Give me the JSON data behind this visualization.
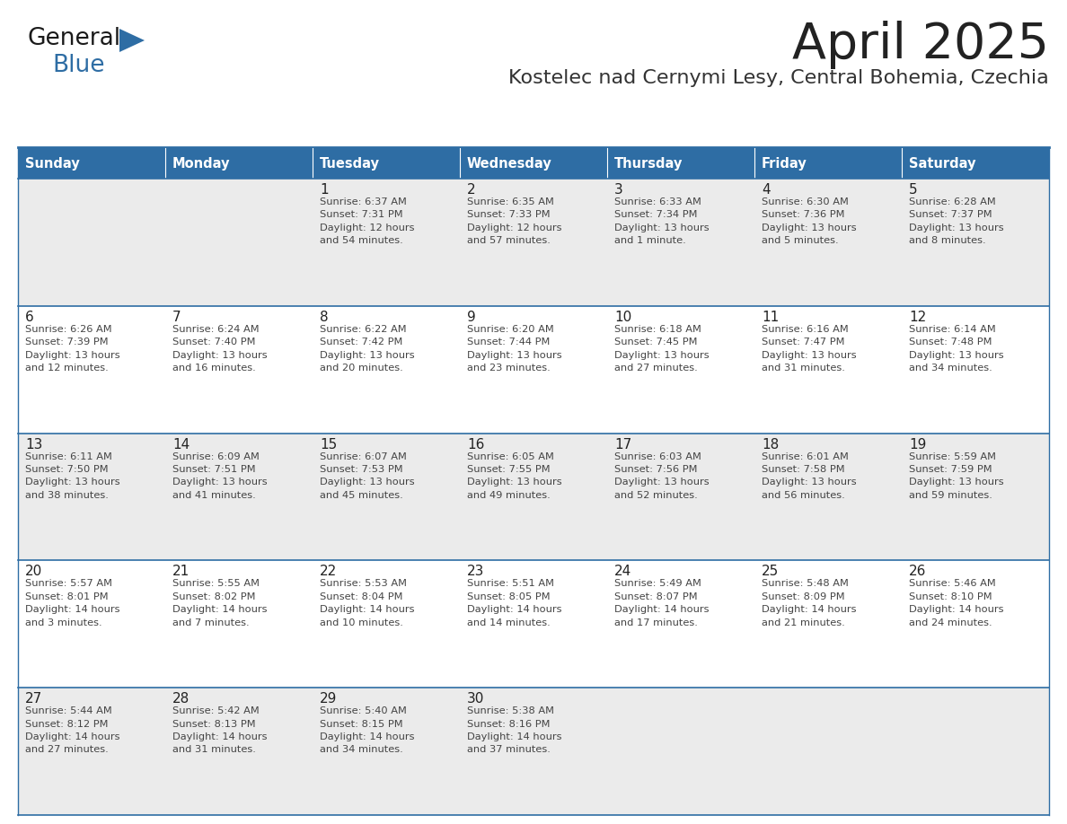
{
  "title": "April 2025",
  "subtitle": "Kostelec nad Cernymi Lesy, Central Bohemia, Czechia",
  "header_bg": "#2E6DA4",
  "header_text": "#FFFFFF",
  "row_bg_odd": "#EBEBEB",
  "row_bg_even": "#FFFFFF",
  "cell_border_color": "#2E6DA4",
  "title_color": "#222222",
  "subtitle_color": "#333333",
  "day_num_color": "#222222",
  "cell_text_color": "#444444",
  "logo_general_color": "#1a1a1a",
  "logo_blue_color": "#2E6DA4",
  "day_names": [
    "Sunday",
    "Monday",
    "Tuesday",
    "Wednesday",
    "Thursday",
    "Friday",
    "Saturday"
  ],
  "calendar": [
    [
      {
        "day": "",
        "text": ""
      },
      {
        "day": "",
        "text": ""
      },
      {
        "day": "1",
        "text": "Sunrise: 6:37 AM\nSunset: 7:31 PM\nDaylight: 12 hours\nand 54 minutes."
      },
      {
        "day": "2",
        "text": "Sunrise: 6:35 AM\nSunset: 7:33 PM\nDaylight: 12 hours\nand 57 minutes."
      },
      {
        "day": "3",
        "text": "Sunrise: 6:33 AM\nSunset: 7:34 PM\nDaylight: 13 hours\nand 1 minute."
      },
      {
        "day": "4",
        "text": "Sunrise: 6:30 AM\nSunset: 7:36 PM\nDaylight: 13 hours\nand 5 minutes."
      },
      {
        "day": "5",
        "text": "Sunrise: 6:28 AM\nSunset: 7:37 PM\nDaylight: 13 hours\nand 8 minutes."
      }
    ],
    [
      {
        "day": "6",
        "text": "Sunrise: 6:26 AM\nSunset: 7:39 PM\nDaylight: 13 hours\nand 12 minutes."
      },
      {
        "day": "7",
        "text": "Sunrise: 6:24 AM\nSunset: 7:40 PM\nDaylight: 13 hours\nand 16 minutes."
      },
      {
        "day": "8",
        "text": "Sunrise: 6:22 AM\nSunset: 7:42 PM\nDaylight: 13 hours\nand 20 minutes."
      },
      {
        "day": "9",
        "text": "Sunrise: 6:20 AM\nSunset: 7:44 PM\nDaylight: 13 hours\nand 23 minutes."
      },
      {
        "day": "10",
        "text": "Sunrise: 6:18 AM\nSunset: 7:45 PM\nDaylight: 13 hours\nand 27 minutes."
      },
      {
        "day": "11",
        "text": "Sunrise: 6:16 AM\nSunset: 7:47 PM\nDaylight: 13 hours\nand 31 minutes."
      },
      {
        "day": "12",
        "text": "Sunrise: 6:14 AM\nSunset: 7:48 PM\nDaylight: 13 hours\nand 34 minutes."
      }
    ],
    [
      {
        "day": "13",
        "text": "Sunrise: 6:11 AM\nSunset: 7:50 PM\nDaylight: 13 hours\nand 38 minutes."
      },
      {
        "day": "14",
        "text": "Sunrise: 6:09 AM\nSunset: 7:51 PM\nDaylight: 13 hours\nand 41 minutes."
      },
      {
        "day": "15",
        "text": "Sunrise: 6:07 AM\nSunset: 7:53 PM\nDaylight: 13 hours\nand 45 minutes."
      },
      {
        "day": "16",
        "text": "Sunrise: 6:05 AM\nSunset: 7:55 PM\nDaylight: 13 hours\nand 49 minutes."
      },
      {
        "day": "17",
        "text": "Sunrise: 6:03 AM\nSunset: 7:56 PM\nDaylight: 13 hours\nand 52 minutes."
      },
      {
        "day": "18",
        "text": "Sunrise: 6:01 AM\nSunset: 7:58 PM\nDaylight: 13 hours\nand 56 minutes."
      },
      {
        "day": "19",
        "text": "Sunrise: 5:59 AM\nSunset: 7:59 PM\nDaylight: 13 hours\nand 59 minutes."
      }
    ],
    [
      {
        "day": "20",
        "text": "Sunrise: 5:57 AM\nSunset: 8:01 PM\nDaylight: 14 hours\nand 3 minutes."
      },
      {
        "day": "21",
        "text": "Sunrise: 5:55 AM\nSunset: 8:02 PM\nDaylight: 14 hours\nand 7 minutes."
      },
      {
        "day": "22",
        "text": "Sunrise: 5:53 AM\nSunset: 8:04 PM\nDaylight: 14 hours\nand 10 minutes."
      },
      {
        "day": "23",
        "text": "Sunrise: 5:51 AM\nSunset: 8:05 PM\nDaylight: 14 hours\nand 14 minutes."
      },
      {
        "day": "24",
        "text": "Sunrise: 5:49 AM\nSunset: 8:07 PM\nDaylight: 14 hours\nand 17 minutes."
      },
      {
        "day": "25",
        "text": "Sunrise: 5:48 AM\nSunset: 8:09 PM\nDaylight: 14 hours\nand 21 minutes."
      },
      {
        "day": "26",
        "text": "Sunrise: 5:46 AM\nSunset: 8:10 PM\nDaylight: 14 hours\nand 24 minutes."
      }
    ],
    [
      {
        "day": "27",
        "text": "Sunrise: 5:44 AM\nSunset: 8:12 PM\nDaylight: 14 hours\nand 27 minutes."
      },
      {
        "day": "28",
        "text": "Sunrise: 5:42 AM\nSunset: 8:13 PM\nDaylight: 14 hours\nand 31 minutes."
      },
      {
        "day": "29",
        "text": "Sunrise: 5:40 AM\nSunset: 8:15 PM\nDaylight: 14 hours\nand 34 minutes."
      },
      {
        "day": "30",
        "text": "Sunrise: 5:38 AM\nSunset: 8:16 PM\nDaylight: 14 hours\nand 37 minutes."
      },
      {
        "day": "",
        "text": ""
      },
      {
        "day": "",
        "text": ""
      },
      {
        "day": "",
        "text": ""
      }
    ]
  ]
}
